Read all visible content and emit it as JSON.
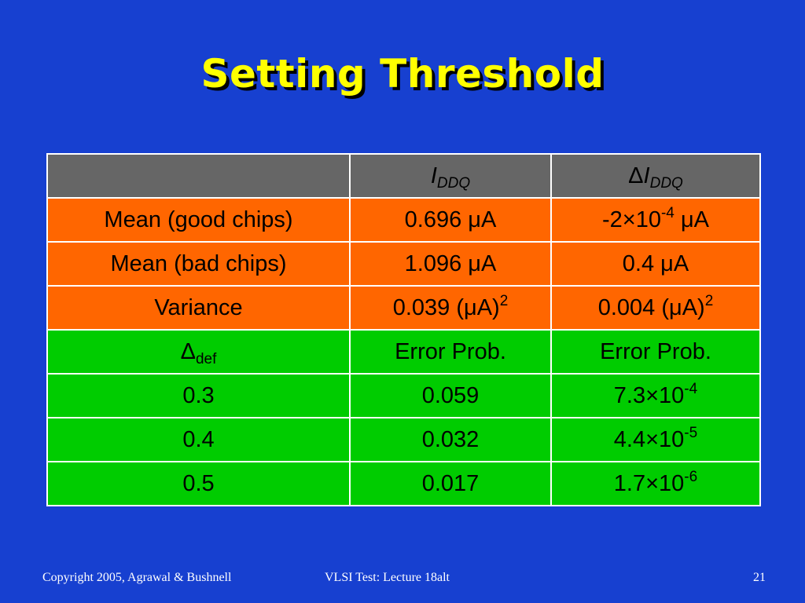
{
  "slide": {
    "title": "Setting Threshold"
  },
  "table": {
    "header": {
      "col1": "",
      "col2_symbol": "I",
      "col2_sub": "DDQ",
      "col3_delta": "Δ",
      "col3_symbol": "I",
      "col3_sub": "DDQ"
    },
    "stats_rows": [
      {
        "label": "Mean (good chips)",
        "iddq": "0.696 μA",
        "delta_base": "-2×10",
        "delta_exp": "-4",
        "delta_unit": " μA"
      },
      {
        "label": "Mean (bad chips)",
        "iddq": "1.096 μA",
        "delta_base": "0.4 μA",
        "delta_exp": "",
        "delta_unit": ""
      },
      {
        "label": "Variance",
        "iddq_base": "0.039 (μA)",
        "iddq_exp": "2",
        "delta_base": "0.004 (μA)",
        "delta_exp": "2"
      }
    ],
    "error_header": {
      "delta_symbol": "Δ",
      "delta_sub": "def",
      "col2": "Error Prob.",
      "col3": "Error Prob."
    },
    "error_rows": [
      {
        "delta_def": "0.3",
        "prob_iddq": "0.059",
        "prob_delta_base": "7.3×10",
        "prob_delta_exp": "-4"
      },
      {
        "delta_def": "0.4",
        "prob_iddq": "0.032",
        "prob_delta_base": "4.4×10",
        "prob_delta_exp": "-5"
      },
      {
        "delta_def": "0.5",
        "prob_iddq": "0.017",
        "prob_delta_base": "1.7×10",
        "prob_delta_exp": "-6"
      }
    ]
  },
  "footer": {
    "copyright": "Copyright 2005, Agrawal & Bushnell",
    "course": "VLSI Test: Lecture 18alt",
    "page_number": "21"
  },
  "colors": {
    "background": "#1740d0",
    "title": "#ffff00",
    "header_row": "#666666",
    "stats_rows": "#ff6600",
    "error_rows": "#00cc00"
  }
}
